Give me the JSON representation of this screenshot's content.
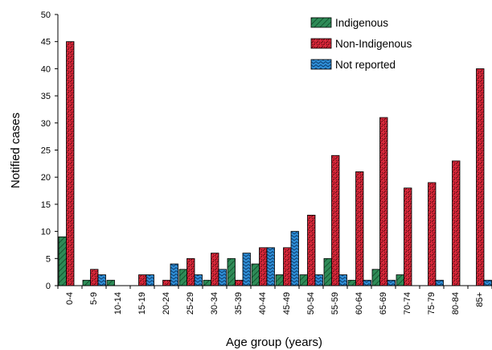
{
  "chart_data": {
    "type": "bar",
    "title": "",
    "xlabel": "Age group (years)",
    "ylabel": "Notified cases",
    "ylim": [
      0,
      50
    ],
    "yticks": [
      0,
      5,
      10,
      15,
      20,
      25,
      30,
      35,
      40,
      45,
      50
    ],
    "grid": false,
    "legend_position": "top-right",
    "categories": [
      "0-4",
      "5-9",
      "10-14",
      "15-19",
      "20-24",
      "25-29",
      "30-34",
      "35-39",
      "40-44",
      "45-49",
      "50-54",
      "55-59",
      "60-64",
      "65-69",
      "70-74",
      "75-79",
      "80-84",
      "85+"
    ],
    "series": [
      {
        "name": "Indigenous",
        "color": "#2e8b57",
        "values": [
          9,
          1,
          1,
          0,
          0,
          3,
          1,
          5,
          4,
          2,
          2,
          5,
          1,
          3,
          2,
          0,
          0,
          0
        ]
      },
      {
        "name": "Non-Indigenous",
        "color": "#d9283a",
        "values": [
          45,
          3,
          0,
          2,
          1,
          5,
          6,
          1,
          7,
          7,
          13,
          24,
          21,
          31,
          18,
          19,
          23,
          40
        ]
      },
      {
        "name": "Not reported",
        "color": "#2f8ed6",
        "values": [
          0,
          2,
          0,
          2,
          4,
          2,
          3,
          6,
          7,
          10,
          2,
          2,
          1,
          1,
          0,
          1,
          0,
          1
        ]
      }
    ]
  }
}
